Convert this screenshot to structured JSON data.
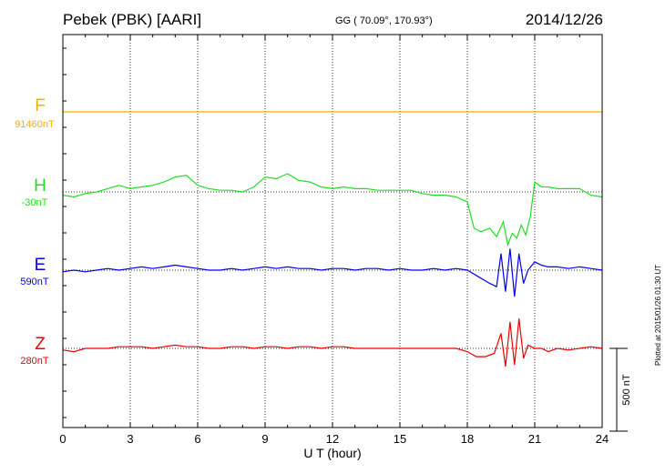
{
  "header": {
    "station": "Pebek (PBK)  [AARI]",
    "coords": "GG ( 70.09°, 170.93°)",
    "date": "2014/12/26",
    "plotted": "Plotted at 2015/01/26 01:30 UT"
  },
  "scale_label": "500 nT",
  "colors": {
    "F": "#f0b000",
    "H": "#22dd22",
    "E": "#0000ee",
    "Z": "#ee0000"
  },
  "channels": [
    {
      "name": "F",
      "base": "91460nT"
    },
    {
      "name": "H",
      "base": "-30nT"
    },
    {
      "name": "E",
      "base": "590nT"
    },
    {
      "name": "Z",
      "base": "280nT"
    }
  ],
  "chart_data": {
    "type": "line",
    "title": "Pebek (PBK)  [AARI]",
    "xlabel": "U T (hour)",
    "ylabel": "",
    "xlim": [
      0,
      24
    ],
    "xticks": [
      "0",
      "3",
      "6",
      "9",
      "12",
      "15",
      "18",
      "21",
      "24"
    ],
    "scale_bar_nT": 500,
    "grid": true,
    "series": [
      {
        "name": "F",
        "baseline": "91460nT",
        "x": [
          0,
          24
        ],
        "y": [
          0,
          0
        ]
      },
      {
        "name": "H",
        "baseline": "-30nT",
        "x": [
          0,
          0.5,
          1,
          1.5,
          2,
          2.5,
          3,
          3.5,
          4,
          4.5,
          5,
          5.5,
          6,
          6.5,
          7,
          7.5,
          8,
          8.5,
          9,
          9.5,
          10,
          10.5,
          11,
          11.5,
          12,
          12.5,
          13,
          13.5,
          14,
          14.5,
          15,
          15.5,
          16,
          16.5,
          17,
          17.5,
          18,
          18.3,
          18.6,
          19,
          19.3,
          19.6,
          19.8,
          20,
          20.2,
          20.4,
          20.6,
          20.8,
          21,
          21.3,
          21.6,
          22,
          22.5,
          23,
          23.5,
          24
        ],
        "y": [
          -20,
          -30,
          -10,
          0,
          20,
          40,
          20,
          30,
          40,
          60,
          90,
          100,
          40,
          20,
          10,
          10,
          0,
          30,
          90,
          80,
          110,
          70,
          60,
          30,
          20,
          30,
          20,
          20,
          10,
          10,
          10,
          10,
          -10,
          -20,
          -20,
          -30,
          -60,
          -220,
          -240,
          -220,
          -270,
          -180,
          -320,
          -250,
          -280,
          -200,
          -260,
          -150,
          60,
          30,
          30,
          20,
          20,
          20,
          -20,
          -30
        ]
      },
      {
        "name": "E",
        "baseline": "590nT",
        "x": [
          0,
          0.5,
          1,
          1.5,
          2,
          2.5,
          3,
          3.5,
          4,
          4.5,
          5,
          5.5,
          6,
          6.5,
          7,
          7.5,
          8,
          8.5,
          9,
          9.5,
          10,
          10.5,
          11,
          11.5,
          12,
          12.5,
          13,
          13.5,
          14,
          14.5,
          15,
          15.5,
          16,
          16.5,
          17,
          17.5,
          18,
          18.5,
          19,
          19.3,
          19.5,
          19.7,
          19.9,
          20.1,
          20.3,
          20.5,
          20.7,
          21,
          21.3,
          21.6,
          22,
          22.5,
          23,
          23.5,
          24
        ],
        "y": [
          -10,
          0,
          -10,
          0,
          10,
          0,
          10,
          20,
          10,
          20,
          30,
          20,
          10,
          0,
          0,
          10,
          0,
          10,
          20,
          10,
          20,
          10,
          10,
          0,
          10,
          10,
          0,
          10,
          10,
          0,
          10,
          0,
          0,
          10,
          0,
          10,
          0,
          -40,
          -80,
          -100,
          100,
          -130,
          130,
          -160,
          100,
          -80,
          0,
          50,
          30,
          20,
          20,
          10,
          20,
          10,
          0
        ]
      },
      {
        "name": "Z",
        "baseline": "280nT",
        "x": [
          0,
          0.5,
          1,
          1.5,
          2,
          2.5,
          3,
          3.5,
          4,
          4.5,
          5,
          5.5,
          6,
          6.5,
          7,
          7.5,
          8,
          8.5,
          9,
          9.5,
          10,
          10.5,
          11,
          11.5,
          12,
          12.5,
          13,
          13.5,
          14,
          14.5,
          15,
          15.5,
          16,
          16.5,
          17,
          17.5,
          18,
          18.4,
          18.8,
          19.2,
          19.5,
          19.7,
          19.9,
          20.1,
          20.3,
          20.5,
          20.7,
          21,
          21.3,
          21.6,
          22,
          22.5,
          23,
          23.5,
          24
        ],
        "y": [
          -10,
          -20,
          0,
          0,
          0,
          10,
          10,
          10,
          0,
          10,
          20,
          10,
          10,
          0,
          0,
          10,
          10,
          0,
          10,
          10,
          0,
          10,
          10,
          0,
          10,
          10,
          0,
          0,
          0,
          0,
          0,
          0,
          0,
          0,
          0,
          0,
          -20,
          -50,
          -50,
          -30,
          90,
          -110,
          160,
          -100,
          180,
          -60,
          20,
          0,
          0,
          -20,
          0,
          -10,
          0,
          10,
          0
        ]
      }
    ]
  },
  "xaxis": {
    "label": "U T (hour)"
  }
}
